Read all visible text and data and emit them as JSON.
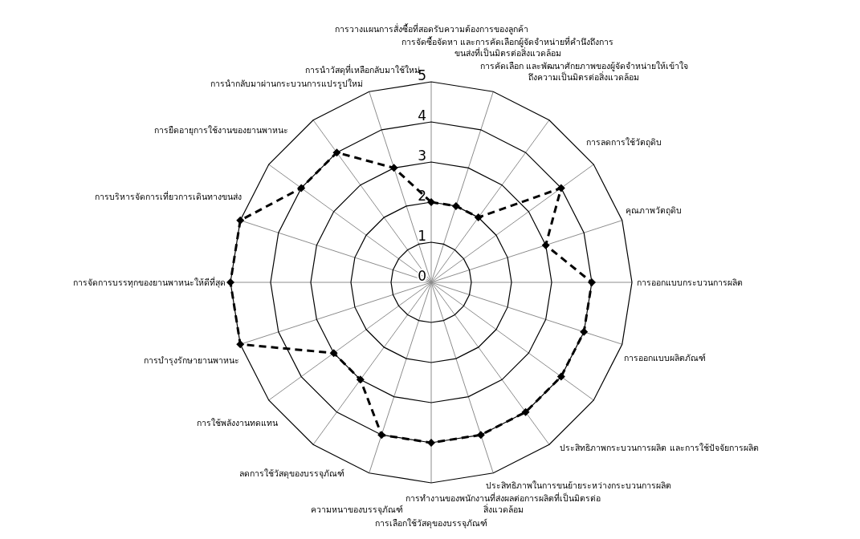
{
  "chart_data": {
    "type": "radar",
    "categories": [
      "การวางแผนการสั่งซื้อที่สอดรับความต้องการของลูกค้า",
      "การจัดซื้อจัดหา และการคัดเลือกผู้จัดจำหน่ายที่คำนึงถึงการ\nขนส่งที่เป็นมิตรต่อสิ่งแวดล้อม",
      "การคัดเลือก และพัฒนาศักยภาพของผู้จัดจำหน่ายให้เข้าใจ\nถึงความเป็นมิตรต่อสิ่งแวดล้อม",
      "การลดการใช้วัตถุดิบ",
      "คุณภาพวัตถุดิบ",
      "การออกแบบกระบวนการผลิต",
      "การออกแบบผลิตภัณฑ์",
      "ประสิทธิภาพกระบวนการผลิต และการใช้ปัจจัยการผลิต",
      "ประสิทธิภาพในการขนย้ายระหว่างกระบวนการผลิต",
      "การทำงานของพนักงานที่ส่งผลต่อการผลิตที่เป็นมิตรต่อ\nสิ่งแวดล้อม",
      "การเลือกใช้วัสดุของบรรจุภัณฑ์",
      "ความหนาของบรรจุภัณฑ์",
      "ลดการใช้วัสดุของบรรจุภัณฑ์",
      "การใช้พลังงานทดแทน",
      "การบำรุงรักษายานพาหนะ",
      "การจัดการบรรทุกของยานพาหนะให้ดีที่สุด",
      "การบริหารจัดการเที่ยวการเดินทางขนส่ง",
      "การยืดอายุการใช้งานของยานพาหนะ",
      "การนำกลับมาผ่านกระบวนการแปรรูปใหม่",
      "การนำวัสดุที่เหลือกลับมาใช้ใหม่"
    ],
    "series": [
      {
        "color": "#000000",
        "values": [
          2,
          2,
          2,
          4,
          3,
          4,
          4,
          4,
          4,
          4,
          4,
          4,
          3,
          3,
          5,
          5,
          5,
          4,
          4,
          3
        ]
      }
    ],
    "ylim": [
      0,
      5
    ],
    "yticks": [
      0,
      1,
      2,
      3,
      4,
      5
    ],
    "grid": true,
    "marker": "diamond",
    "line_style": "dashed"
  }
}
